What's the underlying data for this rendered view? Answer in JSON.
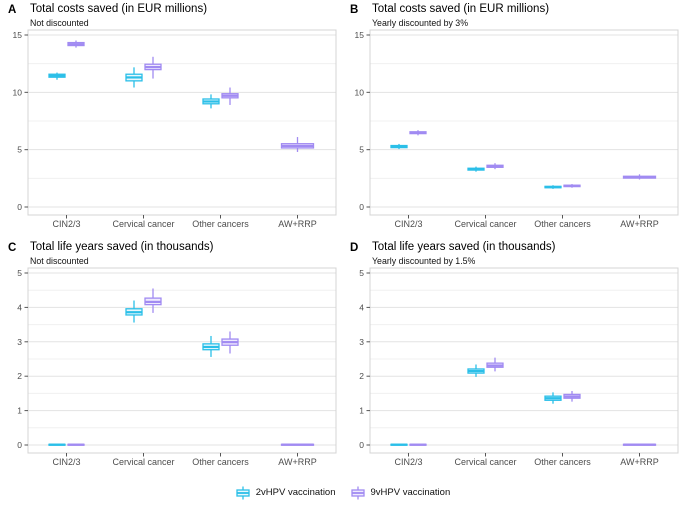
{
  "colors": {
    "series": {
      "2v": {
        "stroke": "#2BBFE8",
        "fill": "#E8F8FD"
      },
      "9v": {
        "stroke": "#A18BF2",
        "fill": "#EFEAFE"
      }
    },
    "grid_major": "#E3E3E3",
    "grid_minor": "#F0F0F0",
    "panel_border": "#D4D4D4",
    "tick": "#555555",
    "axis_text": "#4D4D4D",
    "title": "#000000"
  },
  "legend": {
    "items": [
      {
        "key": "2v",
        "label": "2vHPV vaccination"
      },
      {
        "key": "9v",
        "label": "9vHPV vaccination"
      }
    ]
  },
  "chart_data": [
    {
      "type": "boxplot",
      "panel_label": "A",
      "title": "Total costs saved (in EUR millions)",
      "subtitle": "Not discounted",
      "categories": [
        "CIN2/3",
        "Cervical cancer",
        "Other cancers",
        "AW+RRP"
      ],
      "ylim": [
        0,
        15
      ],
      "yticks": [
        0,
        5,
        10,
        15
      ],
      "yticks_minor": [
        2.5,
        7.5,
        12.5
      ],
      "series": [
        {
          "key": "2v",
          "name": "2vHPV vaccination",
          "boxes": [
            {
              "low": 11.1,
              "q1": 11.32,
              "median": 11.45,
              "q3": 11.58,
              "high": 11.72
            },
            {
              "low": 10.42,
              "q1": 11.0,
              "median": 11.3,
              "q3": 11.58,
              "high": 12.18
            },
            {
              "low": 8.6,
              "q1": 9.0,
              "median": 9.2,
              "q3": 9.42,
              "high": 9.82
            },
            null
          ]
        },
        {
          "key": "9v",
          "name": "9vHPV vaccination",
          "boxes": [
            {
              "low": 13.9,
              "q1": 14.08,
              "median": 14.2,
              "q3": 14.34,
              "high": 14.52
            },
            {
              "low": 11.2,
              "q1": 11.98,
              "median": 12.2,
              "q3": 12.45,
              "high": 13.1
            },
            {
              "low": 8.9,
              "q1": 9.52,
              "median": 9.7,
              "q3": 9.88,
              "high": 10.42
            },
            {
              "low": 4.8,
              "q1": 5.15,
              "median": 5.32,
              "q3": 5.52,
              "high": 6.1
            }
          ]
        }
      ]
    },
    {
      "type": "boxplot",
      "panel_label": "B",
      "title": "Total costs saved (in EUR millions)",
      "subtitle": "Yearly discounted by 3%",
      "categories": [
        "CIN2/3",
        "Cervical cancer",
        "Other cancers",
        "AW+RRP"
      ],
      "ylim": [
        0,
        15
      ],
      "yticks": [
        0,
        5,
        10,
        15
      ],
      "yticks_minor": [
        2.5,
        7.5,
        12.5
      ],
      "series": [
        {
          "key": "2v",
          "name": "2vHPV vaccination",
          "boxes": [
            {
              "low": 5.05,
              "q1": 5.18,
              "median": 5.27,
              "q3": 5.36,
              "high": 5.5
            },
            {
              "low": 3.08,
              "q1": 3.22,
              "median": 3.3,
              "q3": 3.38,
              "high": 3.52
            },
            {
              "low": 1.58,
              "q1": 1.68,
              "median": 1.74,
              "q3": 1.8,
              "high": 1.9
            },
            null
          ]
        },
        {
          "key": "9v",
          "name": "9vHPV vaccination",
          "boxes": [
            {
              "low": 6.25,
              "q1": 6.4,
              "median": 6.48,
              "q3": 6.56,
              "high": 6.7
            },
            {
              "low": 3.3,
              "q1": 3.46,
              "median": 3.55,
              "q3": 3.64,
              "high": 3.82
            },
            {
              "low": 1.68,
              "q1": 1.78,
              "median": 1.84,
              "q3": 1.9,
              "high": 2.0
            },
            {
              "low": 2.4,
              "q1": 2.52,
              "median": 2.6,
              "q3": 2.68,
              "high": 2.85
            }
          ]
        }
      ]
    },
    {
      "type": "boxplot",
      "panel_label": "C",
      "title": "Total life years saved (in thousands)",
      "subtitle": "Not discounted",
      "categories": [
        "CIN2/3",
        "Cervical cancer",
        "Other cancers",
        "AW+RRP"
      ],
      "ylim": [
        0,
        5
      ],
      "yticks": [
        0,
        1,
        2,
        3,
        4,
        5
      ],
      "yticks_minor": [
        0.5,
        1.5,
        2.5,
        3.5,
        4.5
      ],
      "series": [
        {
          "key": "2v",
          "name": "2vHPV vaccination",
          "boxes": [
            {
              "low": 0,
              "q1": 0,
              "median": 0.01,
              "q3": 0.02,
              "high": 0.03
            },
            {
              "low": 3.56,
              "q1": 3.78,
              "median": 3.86,
              "q3": 3.96,
              "high": 4.2
            },
            {
              "low": 2.56,
              "q1": 2.77,
              "median": 2.85,
              "q3": 2.94,
              "high": 3.17
            },
            null
          ]
        },
        {
          "key": "9v",
          "name": "9vHPV vaccination",
          "boxes": [
            {
              "low": 0,
              "q1": 0,
              "median": 0.01,
              "q3": 0.02,
              "high": 0.03
            },
            {
              "low": 3.84,
              "q1": 4.08,
              "median": 4.16,
              "q3": 4.27,
              "high": 4.55
            },
            {
              "low": 2.66,
              "q1": 2.9,
              "median": 2.99,
              "q3": 3.08,
              "high": 3.3
            },
            {
              "low": 0,
              "q1": 0,
              "median": 0.01,
              "q3": 0.02,
              "high": 0.03
            }
          ]
        }
      ]
    },
    {
      "type": "boxplot",
      "panel_label": "D",
      "title": "Total life years saved (in thousands)",
      "subtitle": "Yearly discounted by 1.5%",
      "categories": [
        "CIN2/3",
        "Cervical cancer",
        "Other cancers",
        "AW+RRP"
      ],
      "ylim": [
        0,
        5
      ],
      "yticks": [
        0,
        1,
        2,
        3,
        4,
        5
      ],
      "yticks_minor": [
        0.5,
        1.5,
        2.5,
        3.5,
        4.5
      ],
      "series": [
        {
          "key": "2v",
          "name": "2vHPV vaccination",
          "boxes": [
            {
              "low": 0,
              "q1": 0,
              "median": 0.01,
              "q3": 0.02,
              "high": 0.03
            },
            {
              "low": 1.98,
              "q1": 2.09,
              "median": 2.15,
              "q3": 2.21,
              "high": 2.34
            },
            {
              "low": 1.2,
              "q1": 1.3,
              "median": 1.36,
              "q3": 1.42,
              "high": 1.53
            },
            null
          ]
        },
        {
          "key": "9v",
          "name": "9vHPV vaccination",
          "boxes": [
            {
              "low": 0,
              "q1": 0,
              "median": 0.01,
              "q3": 0.02,
              "high": 0.03
            },
            {
              "low": 2.14,
              "q1": 2.26,
              "median": 2.31,
              "q3": 2.38,
              "high": 2.54
            },
            {
              "low": 1.26,
              "q1": 1.36,
              "median": 1.41,
              "q3": 1.47,
              "high": 1.57
            },
            {
              "low": 0,
              "q1": 0,
              "median": 0.01,
              "q3": 0.02,
              "high": 0.03
            }
          ]
        }
      ]
    }
  ]
}
